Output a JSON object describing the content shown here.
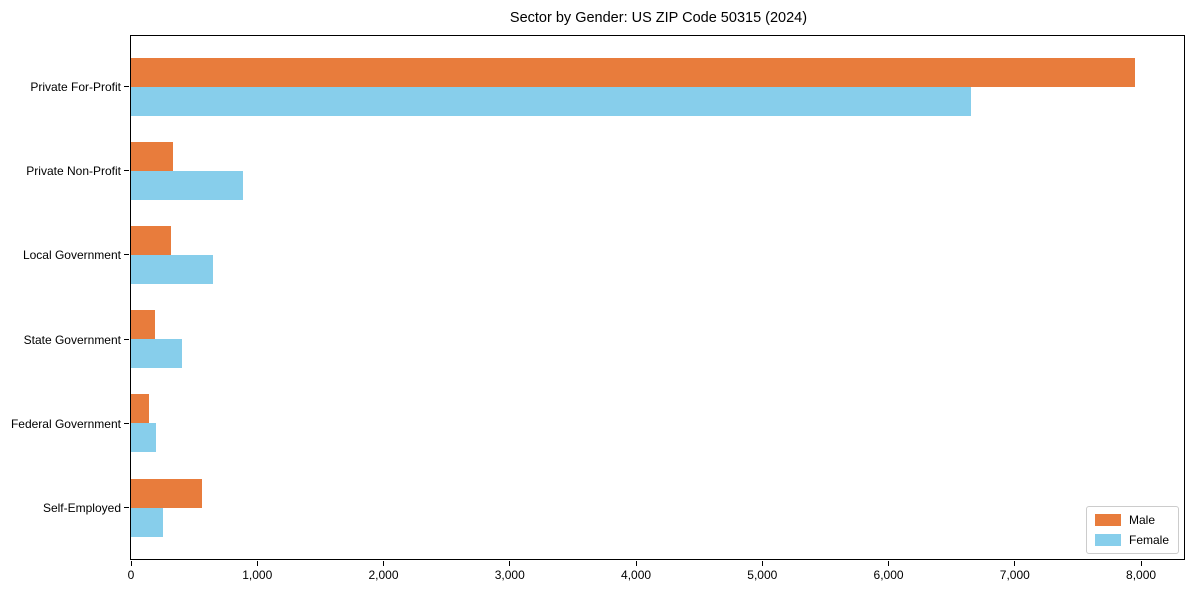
{
  "chart_data": {
    "type": "bar",
    "orientation": "horizontal",
    "title": "Sector by Gender: US ZIP Code 50315 (2024)",
    "categories": [
      "Private For-Profit",
      "Private Non-Profit",
      "Local Government",
      "State Government",
      "Federal Government",
      "Self-Employed"
    ],
    "series": [
      {
        "name": "Male",
        "color": "#E87C3C",
        "values": [
          7950,
          330,
          315,
          190,
          140,
          560
        ]
      },
      {
        "name": "Female",
        "color": "#87CEEB",
        "values": [
          6650,
          885,
          650,
          400,
          200,
          250
        ]
      }
    ],
    "xlim": [
      0,
      8340
    ],
    "xticks": {
      "values": [
        0,
        1000,
        2000,
        3000,
        4000,
        5000,
        6000,
        7000,
        8000
      ],
      "labels": [
        "0",
        "1,000",
        "2,000",
        "3,000",
        "4,000",
        "5,000",
        "6,000",
        "7,000",
        "8,000"
      ]
    },
    "legend": {
      "position": "lower right",
      "entries": [
        "Male",
        "Female"
      ]
    },
    "grid": false,
    "xlabel": "",
    "ylabel": ""
  },
  "colors": {
    "background": "#ffffff",
    "axis": "#000000",
    "legend_border": "#cccccc",
    "male": "#E87C3C",
    "female": "#87CEEB"
  }
}
